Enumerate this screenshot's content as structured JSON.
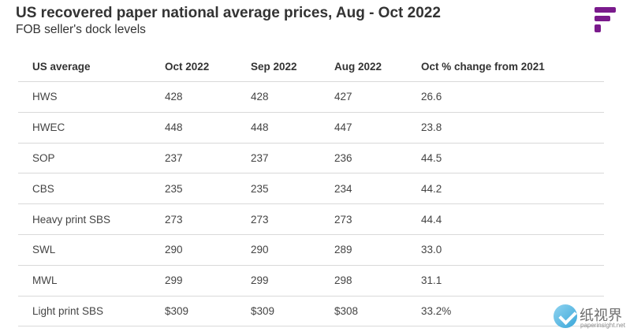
{
  "header": {
    "title": "US recovered paper national average prices, Aug - Oct 2022",
    "subtitle": "FOB seller's dock levels",
    "brand_color": "#7a1a8c"
  },
  "chart_data": {
    "type": "table",
    "title": "US recovered paper national average prices, Aug - Oct 2022",
    "subtitle": "FOB seller's dock levels",
    "columns": [
      "US average",
      "Oct 2022",
      "Sep 2022",
      "Aug 2022",
      "Oct % change from 2021"
    ],
    "rows": [
      [
        "HWS",
        "428",
        "428",
        "427",
        "26.6"
      ],
      [
        "HWEC",
        "448",
        "448",
        "447",
        "23.8"
      ],
      [
        "SOP",
        "237",
        "237",
        "236",
        "44.5"
      ],
      [
        "CBS",
        "235",
        "235",
        "234",
        "44.2"
      ],
      [
        "Heavy print SBS",
        "273",
        "273",
        "273",
        "44.4"
      ],
      [
        "SWL",
        "290",
        "290",
        "289",
        "33.0"
      ],
      [
        "MWL",
        "299",
        "299",
        "298",
        "31.1"
      ],
      [
        "Light print SBS",
        "$309",
        "$309",
        "$308",
        "33.2%"
      ]
    ]
  },
  "watermark": {
    "chinese_text": "纸视界",
    "url_text": "paperinsight.net",
    "icon": "check-circle-icon"
  }
}
